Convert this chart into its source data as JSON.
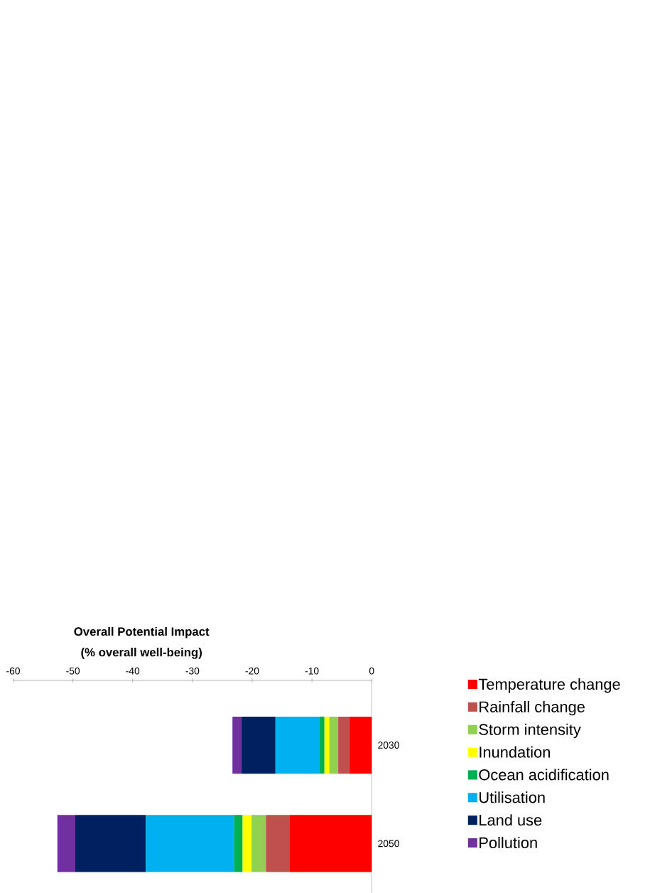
{
  "chart_data": {
    "type": "bar",
    "orientation": "horizontal",
    "stacked": true,
    "title": "Overall Potential Impact",
    "subtitle": "(% overall well-being)",
    "categories": [
      "2030",
      "2050"
    ],
    "series": [
      {
        "name": "Temperature change",
        "color": "#ff0000",
        "values": [
          -3.7,
          -13.7
        ]
      },
      {
        "name": "Rainfall change",
        "color": "#c0504d",
        "values": [
          -1.9,
          -4.0
        ]
      },
      {
        "name": "Storm intensity",
        "color": "#92d050",
        "values": [
          -1.5,
          -2.4
        ]
      },
      {
        "name": "Inundation",
        "color": "#ffff00",
        "values": [
          -0.8,
          -1.5
        ]
      },
      {
        "name": "Ocean acidification",
        "color": "#00b050",
        "values": [
          -0.8,
          -1.4
        ]
      },
      {
        "name": "Utilisation",
        "color": "#00b0f0",
        "values": [
          -7.4,
          -14.8
        ]
      },
      {
        "name": "Land use",
        "color": "#002060",
        "values": [
          -5.7,
          -11.8
        ]
      },
      {
        "name": "Pollution",
        "color": "#7030a0",
        "values": [
          -1.5,
          -3.0
        ]
      }
    ],
    "xlim": [
      -60,
      0
    ],
    "xticks": [
      -60,
      -50,
      -40,
      -30,
      -20,
      -10,
      0
    ],
    "legend": "right"
  }
}
